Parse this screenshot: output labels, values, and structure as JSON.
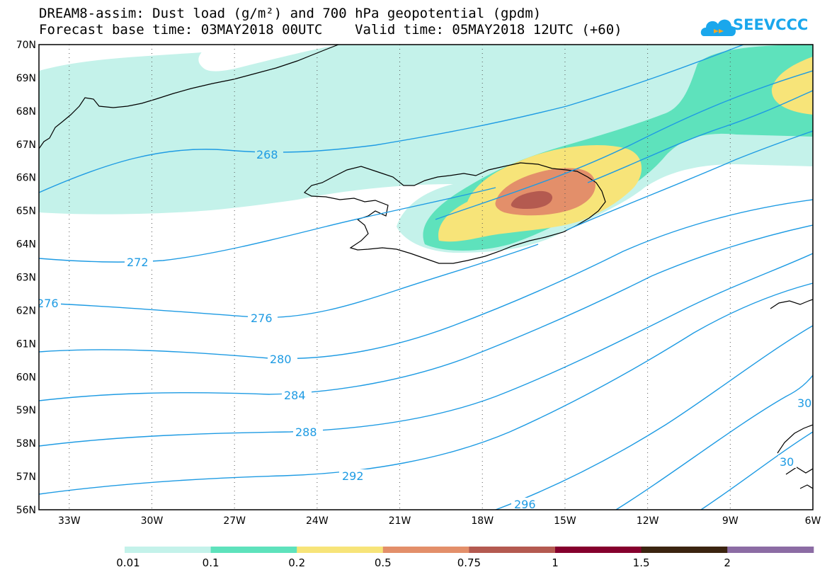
{
  "header": {
    "title_line1": "DREAM8-assim: Dust load (g/m²) and 700 hPa geopotential (gpdm)",
    "title_line2": "Forecast base time: 03MAY2018 00UTC    Valid time: 05MAY2018 12UTC (+60)"
  },
  "logo": {
    "text": "SEEVCCC",
    "icon": "cloud-icon",
    "color": "#1aa7ec"
  },
  "map": {
    "lat_labels": [
      "70N",
      "69N",
      "68N",
      "67N",
      "66N",
      "65N",
      "64N",
      "63N",
      "62N",
      "61N",
      "60N",
      "59N",
      "58N",
      "57N",
      "56N"
    ],
    "lon_labels": [
      "33W",
      "30W",
      "27W",
      "24W",
      "21W",
      "18W",
      "15W",
      "12W",
      "9W",
      "6W"
    ],
    "lat_range": [
      56,
      70
    ],
    "lon_range": [
      -34.1,
      -6
    ],
    "gridlines": "dotted",
    "contour_color": "#1e9be3",
    "contour_labels": [
      "268",
      "272",
      "276",
      "276",
      "280",
      "284",
      "288",
      "292",
      "296",
      "30",
      "30"
    ],
    "dust_colors": [
      "#c4f2ea",
      "#5ee2bc",
      "#f7e479",
      "#e38f6a",
      "#b45a50"
    ]
  },
  "legend": {
    "labels": [
      "0.01",
      "0.1",
      "0.2",
      "0.5",
      "0.75",
      "1",
      "1.5",
      "2"
    ],
    "colors": [
      "#c4f2ea",
      "#5ee2bc",
      "#f7e479",
      "#e38f6a",
      "#b45a50",
      "#85002d",
      "#3b2410",
      "#8c6ca4"
    ]
  }
}
